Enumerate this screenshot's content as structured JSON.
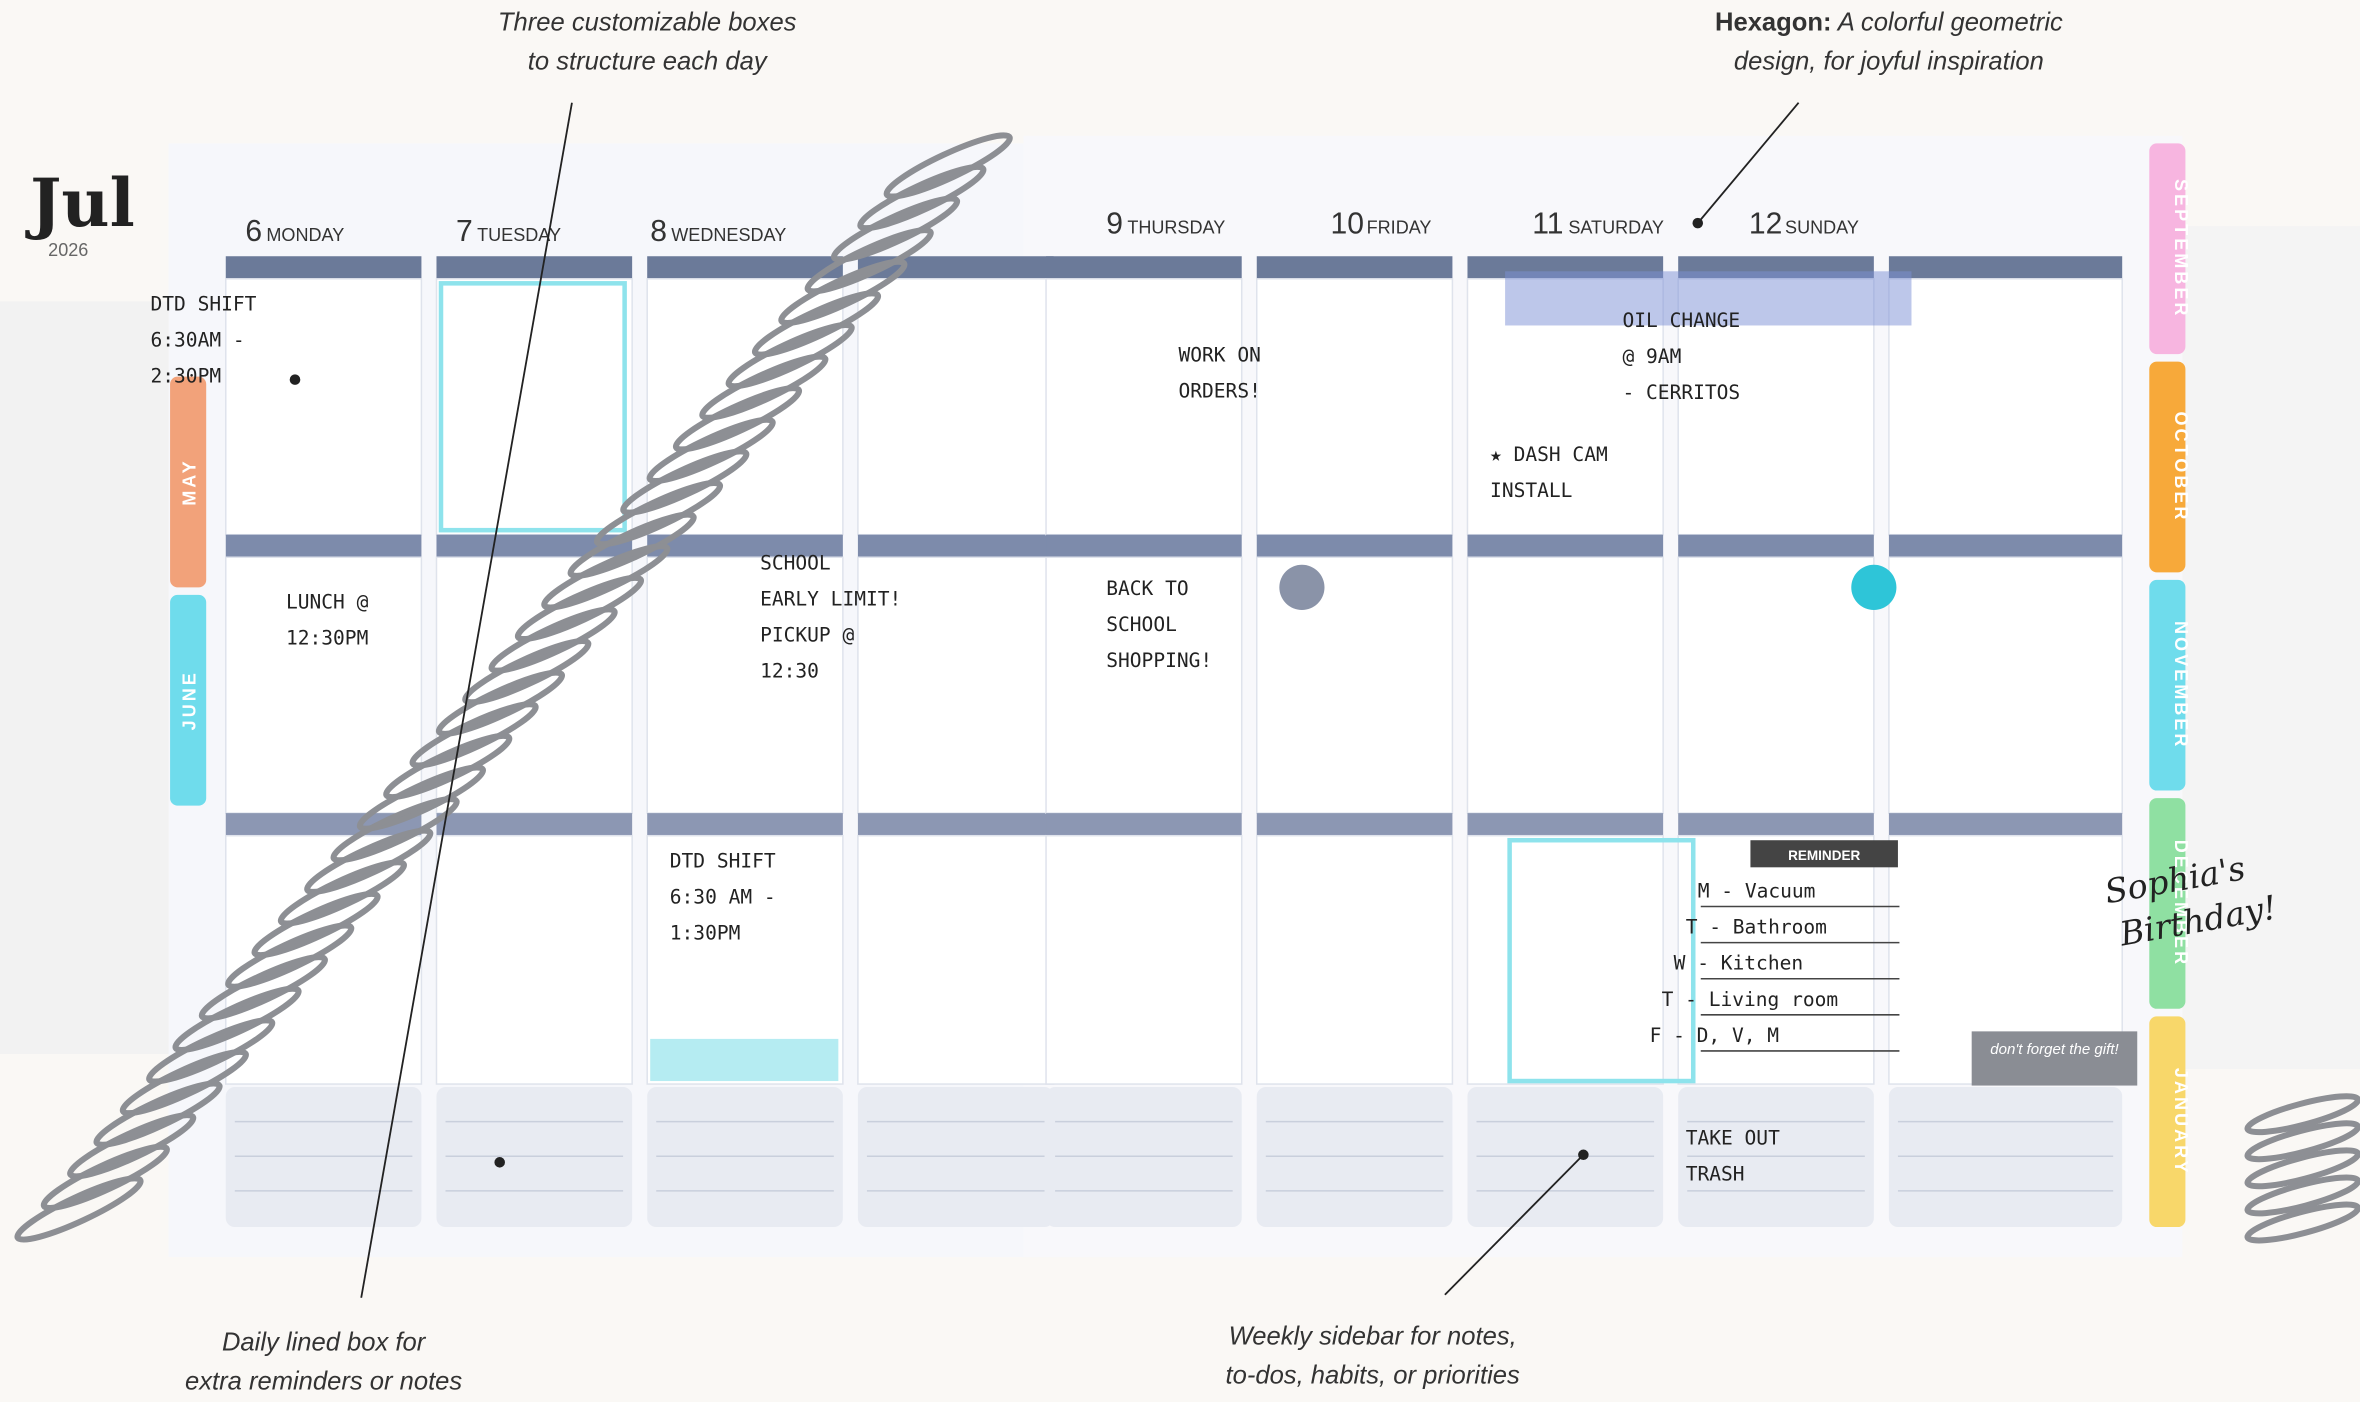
{
  "annotations": [
    {
      "lines": [
        "Three customizable boxes",
        "to structure each day"
      ]
    },
    {
      "bold": "Hexagon:",
      "lines": [
        " A colorful geometric",
        "design, for joyful inspiration"
      ]
    },
    {
      "lines": [
        "Daily lined box for",
        "extra reminders or notes"
      ]
    },
    {
      "lines": [
        "Weekly sidebar for notes,",
        "to-dos, habits, or priorities"
      ]
    }
  ],
  "planner": {
    "month": "Jul",
    "year": "2026",
    "days": [
      {
        "num": "6",
        "name": "MONDAY"
      },
      {
        "num": "7",
        "name": "TUESDAY"
      },
      {
        "num": "8",
        "name": "WEDNESDAY"
      },
      {
        "num": "9",
        "name": "THURSDAY"
      },
      {
        "num": "10",
        "name": "FRIDAY"
      },
      {
        "num": "11",
        "name": "SATURDAY"
      },
      {
        "num": "12",
        "name": "SUNDAY"
      }
    ],
    "left_tabs": [
      "MAY",
      "JUNE"
    ],
    "right_tabs": [
      "SEPTEMBER",
      "OCTOBER",
      "NOVEMBER",
      "DECEMBER",
      "JANUARY"
    ],
    "notes": [
      {
        "lines": [
          "DTD SHIFT",
          "6:30AM -",
          "2:30PM"
        ]
      },
      {
        "lines": [
          "LUNCH @",
          "12:30PM"
        ]
      },
      {
        "lines": [
          "SCHOOL",
          "EARLY LIMIT!",
          "PICKUP @",
          "12:30"
        ]
      },
      {
        "lines": [
          "DTD SHIFT",
          "6:30 AM -",
          "1:30PM"
        ]
      },
      {
        "lines": [
          "WORK ON",
          "ORDERS!"
        ]
      },
      {
        "lines": [
          "BACK TO",
          "SCHOOL",
          "SHOPPING!"
        ]
      },
      {
        "lines": [
          "OIL CHANGE",
          "@ 9AM",
          "- CERRITOS"
        ]
      },
      {
        "lines": [
          "★ DASH CAM",
          "INSTALL"
        ]
      },
      {
        "lines": [
          "TAKE OUT",
          "TRASH"
        ]
      }
    ],
    "reminder": {
      "label": "REMINDER",
      "items": [
        "M - Vacuum",
        "T - Bathroom",
        "W - Kitchen",
        "T - Living room",
        "F - D, V, M"
      ]
    },
    "sticker": "don't forget the gift!",
    "birthday": [
      "Sophia's",
      "Birthday!"
    ]
  }
}
